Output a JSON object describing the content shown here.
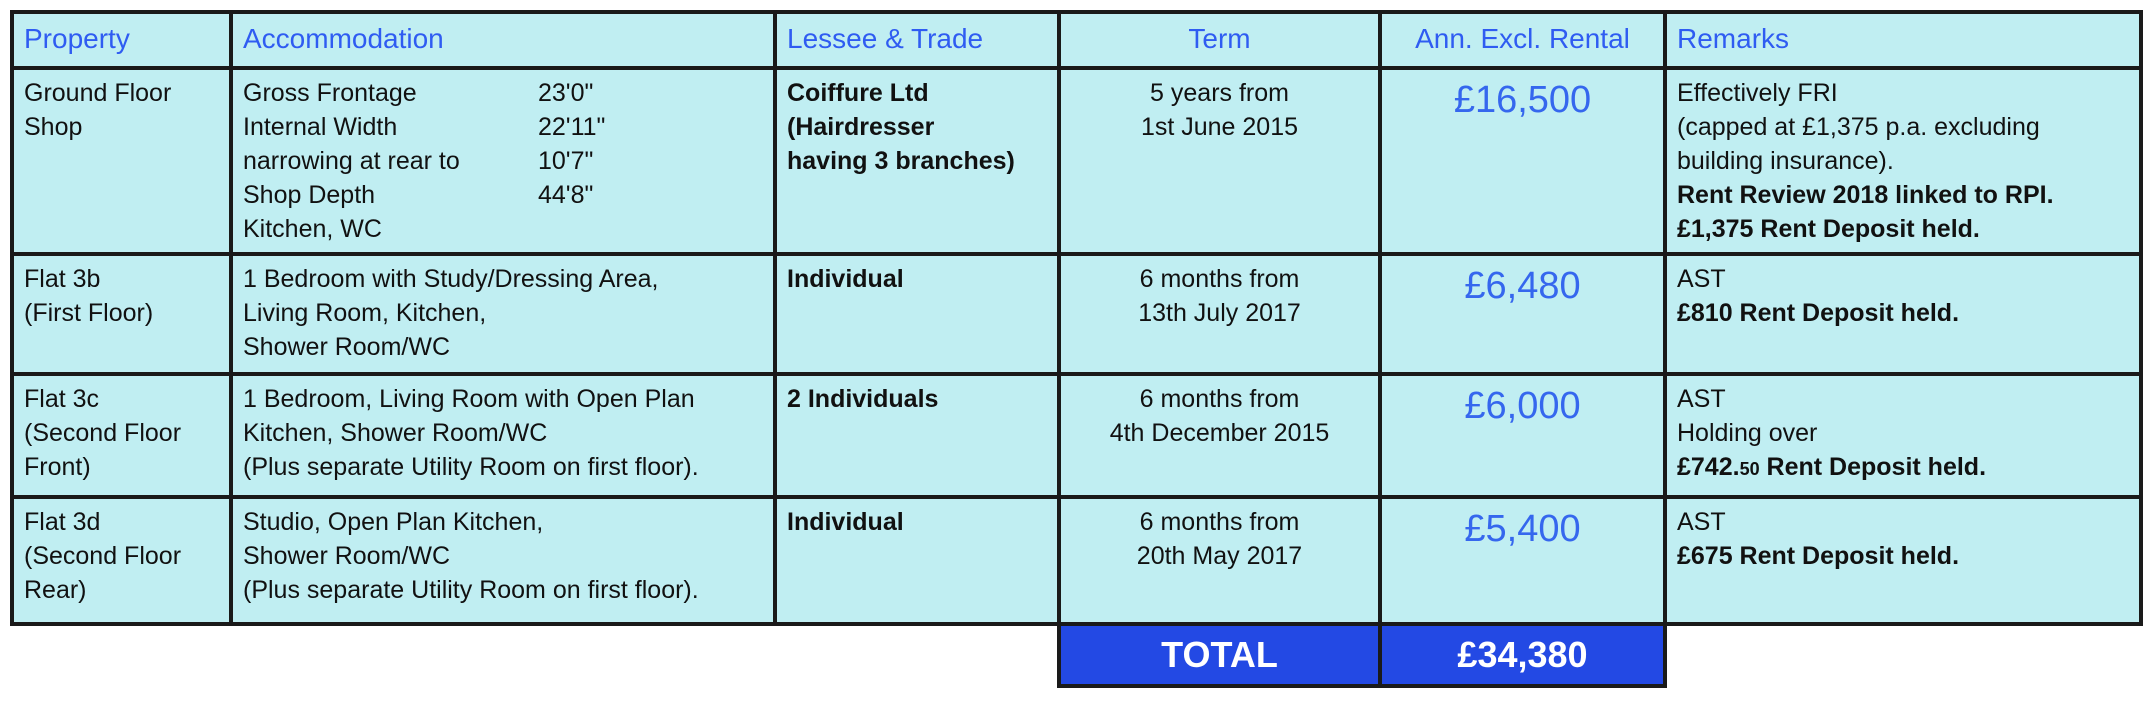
{
  "headers": [
    "Property",
    "Accommodation",
    "Lessee & Trade",
    "Term",
    "Ann. Excl. Rental",
    "Remarks"
  ],
  "rows": [
    {
      "property": [
        "Ground Floor",
        "Shop"
      ],
      "accommodation_dims": [
        [
          "Gross Frontage",
          "23'0\""
        ],
        [
          "Internal Width",
          "22'11\""
        ],
        [
          "narrowing at rear to",
          "10'7\""
        ],
        [
          "Shop Depth",
          "44'8\""
        ]
      ],
      "accommodation": [
        "Kitchen, WC"
      ],
      "lessee": [
        "Coiffure Ltd",
        "(Hairdresser",
        "having 3 branches)"
      ],
      "term": [
        "5 years from",
        "1st June 2015"
      ],
      "rent": "£16,500",
      "remarks": [
        "Effectively FRI",
        "(capped at £1,375 p.a. excluding",
        "building insurance)."
      ],
      "remarks_bold": [
        "Rent Review 2018 linked to RPI.",
        "£1,375 Rent Deposit held."
      ]
    },
    {
      "property": [
        "Flat 3b",
        "(First Floor)"
      ],
      "accommodation": [
        "1 Bedroom with Study/Dressing Area,",
        "Living Room, Kitchen,",
        "Shower Room/WC"
      ],
      "lessee": [
        "Individual"
      ],
      "term": [
        "6 months from",
        "13th July 2017"
      ],
      "rent": "£6,480",
      "remarks": [
        "AST"
      ],
      "remarks_bold": [
        "£810 Rent Deposit held."
      ]
    },
    {
      "property": [
        "Flat 3c",
        "(Second Floor",
        "Front)"
      ],
      "accommodation": [
        "1 Bedroom, Living Room with Open Plan",
        "Kitchen, Shower Room/WC",
        "(Plus separate Utility Room on first floor)."
      ],
      "lessee": [
        "2 Individuals"
      ],
      "term": [
        "6 months from",
        "4th December 2015"
      ],
      "rent": "£6,000",
      "remarks": [
        "AST",
        "Holding over"
      ],
      "remarks_bold_parts": [
        "£742",
        "50",
        " Rent Deposit held."
      ]
    },
    {
      "property": [
        "Flat 3d",
        "(Second Floor",
        "Rear)"
      ],
      "accommodation": [
        "Studio, Open Plan Kitchen,",
        "Shower Room/WC",
        "(Plus separate Utility Room on first floor)."
      ],
      "lessee": [
        "Individual"
      ],
      "term": [
        "6 months from",
        "20th May 2017"
      ],
      "rent": "£5,400",
      "remarks": [
        "AST"
      ],
      "remarks_bold": [
        "£675 Rent Deposit held."
      ]
    }
  ],
  "total": {
    "label": "TOTAL",
    "value": "£34,380"
  },
  "colors": {
    "cell_bg": "#c0eef2",
    "header_text": "#2f5cf2",
    "rent_text": "#3567ee",
    "total_bg": "#2349e4",
    "border": "#1a1a1a"
  }
}
